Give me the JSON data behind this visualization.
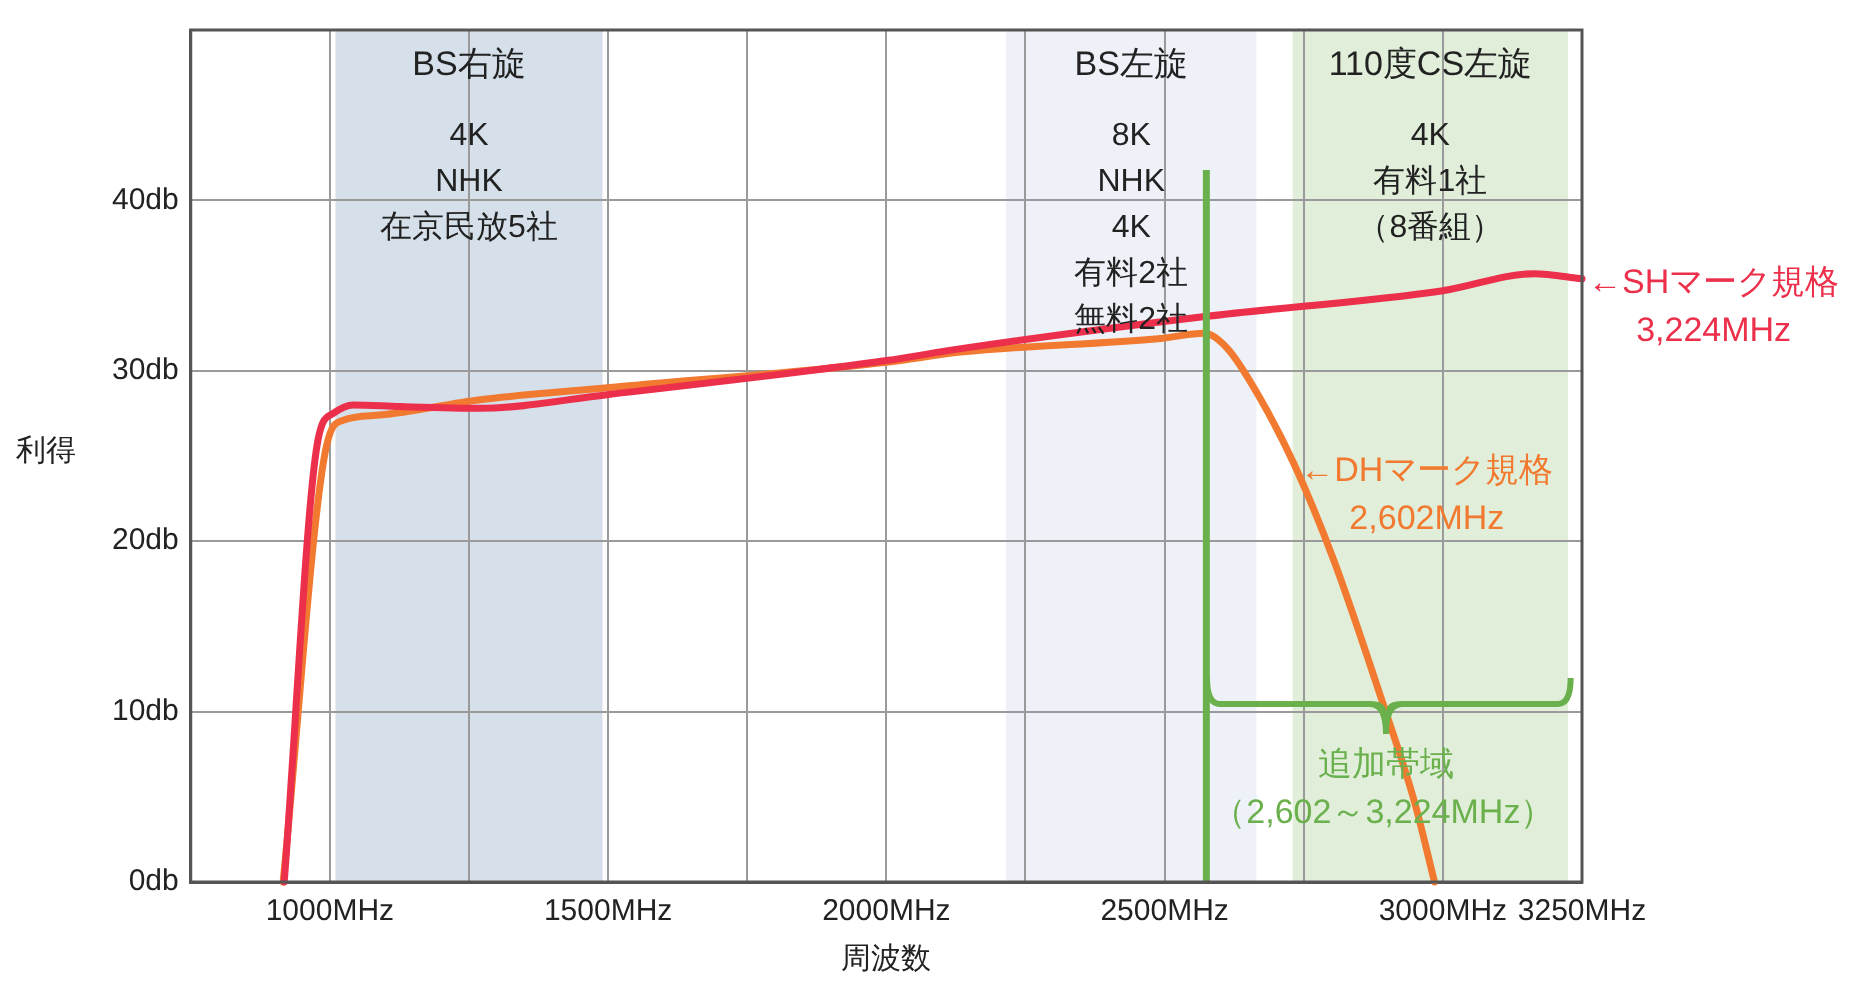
{
  "chart_data": {
    "type": "line",
    "xlabel": "周波数",
    "ylabel": "利得",
    "xlim": [
      750,
      3250
    ],
    "ylim": [
      0,
      50
    ],
    "xticks": [
      {
        "value": 1000,
        "label": "1000MHz"
      },
      {
        "value": 1250,
        "label": null
      },
      {
        "value": 1500,
        "label": "1500MHz"
      },
      {
        "value": 1750,
        "label": null
      },
      {
        "value": 2000,
        "label": "2000MHz"
      },
      {
        "value": 2250,
        "label": null
      },
      {
        "value": 2500,
        "label": "2500MHz"
      },
      {
        "value": 2750,
        "label": null
      },
      {
        "value": 3000,
        "label": "3000MHz"
      },
      {
        "value": 3250,
        "label": "3250MHz"
      }
    ],
    "yticks": [
      {
        "value": 0,
        "label": "0db"
      },
      {
        "value": 10,
        "label": "10db"
      },
      {
        "value": 20,
        "label": "20db"
      },
      {
        "value": 30,
        "label": "30db"
      },
      {
        "value": 40,
        "label": "40db"
      }
    ],
    "grid": true,
    "marker": "none",
    "line_style": "solid",
    "series": [
      {
        "color": "#ec2f4b",
        "x": [
          918,
          979,
          1006,
          1042,
          1126,
          1270,
          1498,
          2000,
          2134,
          2576,
          3000,
          3164,
          3250
        ],
        "values": [
          0,
          26.0,
          27.5,
          28.0,
          27.9,
          27.8,
          28.6,
          30.6,
          31.3,
          33.2,
          34.7,
          35.7,
          35.4
        ]
      },
      {
        "color": "#f27a30",
        "x": [
          916,
          994,
          1024,
          1090,
          1270,
          1498,
          2000,
          2134,
          2493,
          2571,
          2613,
          2673,
          2733,
          2805,
          2889,
          2949,
          2985
        ],
        "values": [
          0,
          25.6,
          27.1,
          27.4,
          28.3,
          29.0,
          30.5,
          31.1,
          31.9,
          32.2,
          31.3,
          28.3,
          24.5,
          18.8,
          10.8,
          4.7,
          0
        ]
      }
    ],
    "bands": [
      {
        "axis": "x",
        "from": 1010,
        "to": 1490,
        "label": "BS右旋\n4K\nNHK\n在京民放5社",
        "color": "#d6e0ea"
      },
      {
        "axis": "x",
        "from": 2215,
        "to": 2665,
        "label": "BS左旋\n8K\nNHK\n4K\n有料2社",
        "color": "#eef1f8"
      },
      {
        "axis": "x",
        "from": 2730,
        "to": 3225,
        "label": "110度CS左旋\n4K\n有料1社",
        "color": "#e1eed9"
      }
    ],
    "ref_lines": [
      {
        "axis": "x",
        "value": 2575,
        "color": "#6ab04c",
        "line_style": "solid"
      }
    ],
    "annotations": [
      {
        "text": "←SHマーク規格\n3,224MHz",
        "x": 3250,
        "y": 35.1
      },
      {
        "text": "←DHマーク規格\n2,602MHz",
        "x": 2733,
        "y": 24.1
      },
      "追加帯域",
      "（2,602～3,224MHz）",
      "無料2社",
      "（8番組）"
    ]
  }
}
